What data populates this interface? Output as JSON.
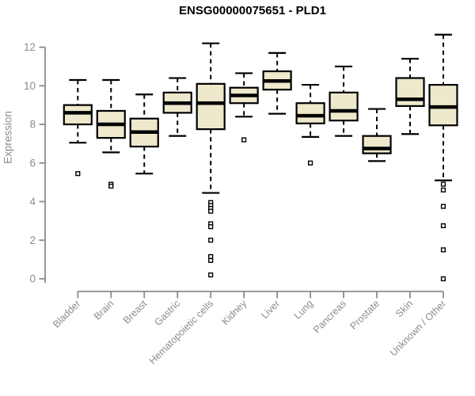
{
  "chart_data": {
    "type": "boxplot",
    "title": "ENSG00000075651 - PLD1",
    "ylabel": "Expression",
    "xlabel": "",
    "ylim": [
      0,
      12.7
    ],
    "yticks": [
      0,
      2,
      4,
      6,
      8,
      10,
      12
    ],
    "grid": false,
    "legend": "none",
    "box_fill": "#EEE8CC",
    "box_stroke": "#000000",
    "axis_color": "#8C8C8C",
    "label_color": "#8C8C8C",
    "categories": [
      "Bladder",
      "Brain",
      "Breast",
      "Gastric",
      "Hematopoietic cells",
      "Kidney",
      "Liver",
      "Lung",
      "Pancreas",
      "Prostate",
      "Skin",
      "Unknown / Other"
    ],
    "series": [
      {
        "category": "Bladder",
        "whisker_low": 7.05,
        "q1": 8.0,
        "median": 8.6,
        "q3": 9.0,
        "whisker_high": 10.3,
        "outliers": [
          5.45
        ]
      },
      {
        "category": "Brain",
        "whisker_low": 6.55,
        "q1": 7.3,
        "median": 8.0,
        "q3": 8.7,
        "whisker_high": 10.3,
        "outliers": [
          4.9,
          4.8
        ]
      },
      {
        "category": "Breast",
        "whisker_low": 5.45,
        "q1": 6.85,
        "median": 7.6,
        "q3": 8.3,
        "whisker_high": 9.55,
        "outliers": []
      },
      {
        "category": "Gastric",
        "whisker_low": 7.4,
        "q1": 8.6,
        "median": 9.1,
        "q3": 9.65,
        "whisker_high": 10.4,
        "outliers": []
      },
      {
        "category": "Hematopoietic cells",
        "whisker_low": 4.45,
        "q1": 7.75,
        "median": 9.1,
        "q3": 10.1,
        "whisker_high": 12.2,
        "outliers": [
          3.95,
          3.8,
          3.65,
          3.5,
          2.85,
          2.7,
          2.0,
          1.15,
          0.95,
          0.2
        ]
      },
      {
        "category": "Kidney",
        "whisker_low": 8.4,
        "q1": 9.1,
        "median": 9.5,
        "q3": 9.9,
        "whisker_high": 10.65,
        "outliers": [
          7.2
        ]
      },
      {
        "category": "Liver",
        "whisker_low": 8.55,
        "q1": 9.8,
        "median": 10.25,
        "q3": 10.75,
        "whisker_high": 11.7,
        "outliers": []
      },
      {
        "category": "Lung",
        "whisker_low": 7.35,
        "q1": 8.05,
        "median": 8.45,
        "q3": 9.1,
        "whisker_high": 10.05,
        "outliers": [
          6.0
        ]
      },
      {
        "category": "Pancreas",
        "whisker_low": 7.4,
        "q1": 8.2,
        "median": 8.7,
        "q3": 9.65,
        "whisker_high": 11.0,
        "outliers": []
      },
      {
        "category": "Prostate",
        "whisker_low": 6.1,
        "q1": 6.5,
        "median": 6.75,
        "q3": 7.4,
        "whisker_high": 8.8,
        "outliers": []
      },
      {
        "category": "Skin",
        "whisker_low": 7.5,
        "q1": 8.95,
        "median": 9.3,
        "q3": 10.4,
        "whisker_high": 11.4,
        "outliers": []
      },
      {
        "category": "Unknown / Other",
        "whisker_low": 5.1,
        "q1": 7.95,
        "median": 8.9,
        "q3": 10.05,
        "whisker_high": 12.65,
        "outliers": [
          4.9,
          4.6,
          3.75,
          2.75,
          1.5,
          0.0
        ]
      }
    ]
  }
}
